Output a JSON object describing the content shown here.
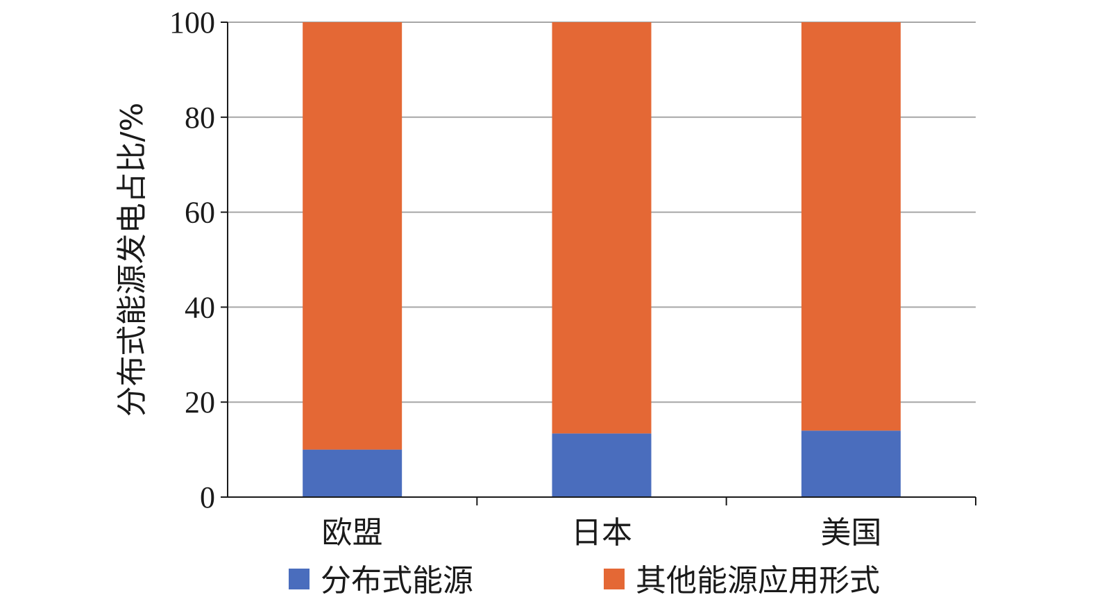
{
  "chart_data": {
    "type": "bar",
    "stacked": true,
    "categories": [
      "欧盟",
      "日本",
      "美国"
    ],
    "series": [
      {
        "name": "分布式能源",
        "values": [
          10,
          13.4,
          14
        ],
        "color": "#4a6dbd"
      },
      {
        "name": "其他能源应用形式",
        "values": [
          90,
          86.6,
          86
        ],
        "color": "#e46835"
      }
    ],
    "title": "",
    "xlabel": "",
    "ylabel": "分布式能源发电占比/%",
    "ylim": [
      0,
      100
    ],
    "yticks": [
      "0",
      "20",
      "40",
      "60",
      "80",
      "100"
    ],
    "grid": true,
    "legend": "bottom"
  }
}
